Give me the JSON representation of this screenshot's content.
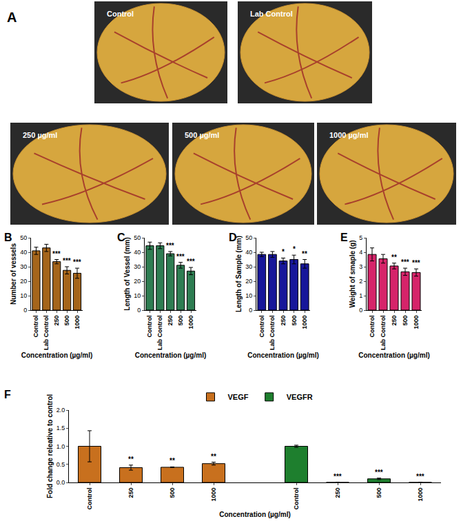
{
  "figure_label": "A",
  "photos": [
    "Control",
    "Lab Control",
    "250 µg/ml",
    "500 µg/ml",
    "1000 µg/ml"
  ],
  "chart_data": [
    {
      "type": "bar",
      "panel": "B",
      "categories": [
        "Control",
        "Lab Control",
        "250",
        "500",
        "1000"
      ],
      "values": [
        41,
        43,
        33.5,
        27.5,
        25.5
      ],
      "error": [
        2.5,
        2.5,
        1.5,
        2.5,
        3.5
      ],
      "annotations": [
        null,
        null,
        "***",
        "***",
        "***"
      ],
      "color": "#a5651b",
      "ylabel": "Number of vessels",
      "xlabel": "Concentration (µg/ml)",
      "ylim": [
        0,
        50
      ],
      "yticks": [
        0,
        10,
        20,
        30,
        40,
        50
      ],
      "grid": false
    },
    {
      "type": "bar",
      "panel": "C",
      "categories": [
        "Control",
        "Lab Control",
        "250",
        "500",
        "1000"
      ],
      "values": [
        44.5,
        44.5,
        39,
        31,
        27
      ],
      "error": [
        2.5,
        2,
        1.5,
        2,
        2.5
      ],
      "annotations": [
        null,
        null,
        "***",
        "***",
        "***"
      ],
      "color": "#2e7d52",
      "ylabel": "Length of Vessel (mm)",
      "xlabel": "Concentration (µg/ml)",
      "ylim": [
        0,
        50
      ],
      "yticks": [
        0,
        10,
        20,
        30,
        40,
        50
      ],
      "grid": false
    },
    {
      "type": "bar",
      "panel": "D",
      "categories": [
        "Control",
        "Lab Control",
        "250",
        "500",
        "1000"
      ],
      "values": [
        38.5,
        38.5,
        34,
        35,
        32
      ],
      "error": [
        1.5,
        2,
        2,
        3,
        3
      ],
      "annotations": [
        null,
        null,
        "*",
        "*",
        "**"
      ],
      "color": "#17179a",
      "ylabel": "Length of Sample (mm)",
      "xlabel": "Concentration (µg/ml)",
      "ylim": [
        0,
        50
      ],
      "yticks": [
        0,
        10,
        20,
        30,
        40,
        50
      ],
      "grid": false
    },
    {
      "type": "bar",
      "panel": "E",
      "categories": [
        "Control",
        "Lab Control",
        "250",
        "500",
        "1000"
      ],
      "values": [
        3.85,
        3.55,
        3.05,
        2.65,
        2.6
      ],
      "error": [
        0.45,
        0.3,
        0.2,
        0.25,
        0.25
      ],
      "annotations": [
        null,
        null,
        "**",
        "***",
        "***"
      ],
      "color": "#d6246a",
      "ylabel": "Weight of smaple (g)",
      "xlabel": "Concentration (µg/ml)",
      "ylim": [
        0,
        5
      ],
      "yticks": [
        0,
        1,
        2,
        3,
        4,
        5
      ],
      "grid": false
    },
    {
      "type": "bar",
      "panel": "F",
      "categories": [
        "Control",
        "250",
        "500",
        "1000",
        null,
        "Control",
        "250",
        "500",
        "1000"
      ],
      "series": [
        {
          "name": "VEGF",
          "color": "#c8701e",
          "values": [
            1.0,
            0.41,
            0.42,
            0.52,
            null,
            null,
            null,
            null,
            null
          ],
          "error": [
            0.43,
            0.07,
            0.01,
            0.04,
            null,
            null,
            null,
            null,
            null
          ],
          "annotations": [
            null,
            "**",
            "**",
            "**",
            null,
            null,
            null,
            null,
            null
          ]
        },
        {
          "name": "VEGFR",
          "color": "#1e7f2e",
          "values": [
            null,
            null,
            null,
            null,
            null,
            1.0,
            0.0,
            0.1,
            0.0
          ],
          "error": [
            null,
            null,
            null,
            null,
            null,
            0.03,
            0,
            0.02,
            0
          ],
          "annotations": [
            null,
            null,
            null,
            null,
            null,
            null,
            "***",
            "***",
            "***"
          ]
        }
      ],
      "ylabel": "Fold change releative to control",
      "xlabel": "Concentration (µg/ml)",
      "ylim": [
        0,
        2.0
      ],
      "yticks": [
        {
          "value": 0,
          "label": "0.0"
        },
        {
          "value": 0.5,
          "label": "0.5"
        },
        {
          "value": 1.0,
          "label": "1.0"
        },
        {
          "value": 1.5,
          "label": "1.5"
        },
        {
          "value": 2.0,
          "label": "2.0"
        }
      ],
      "legend": "top",
      "grid": false
    }
  ]
}
